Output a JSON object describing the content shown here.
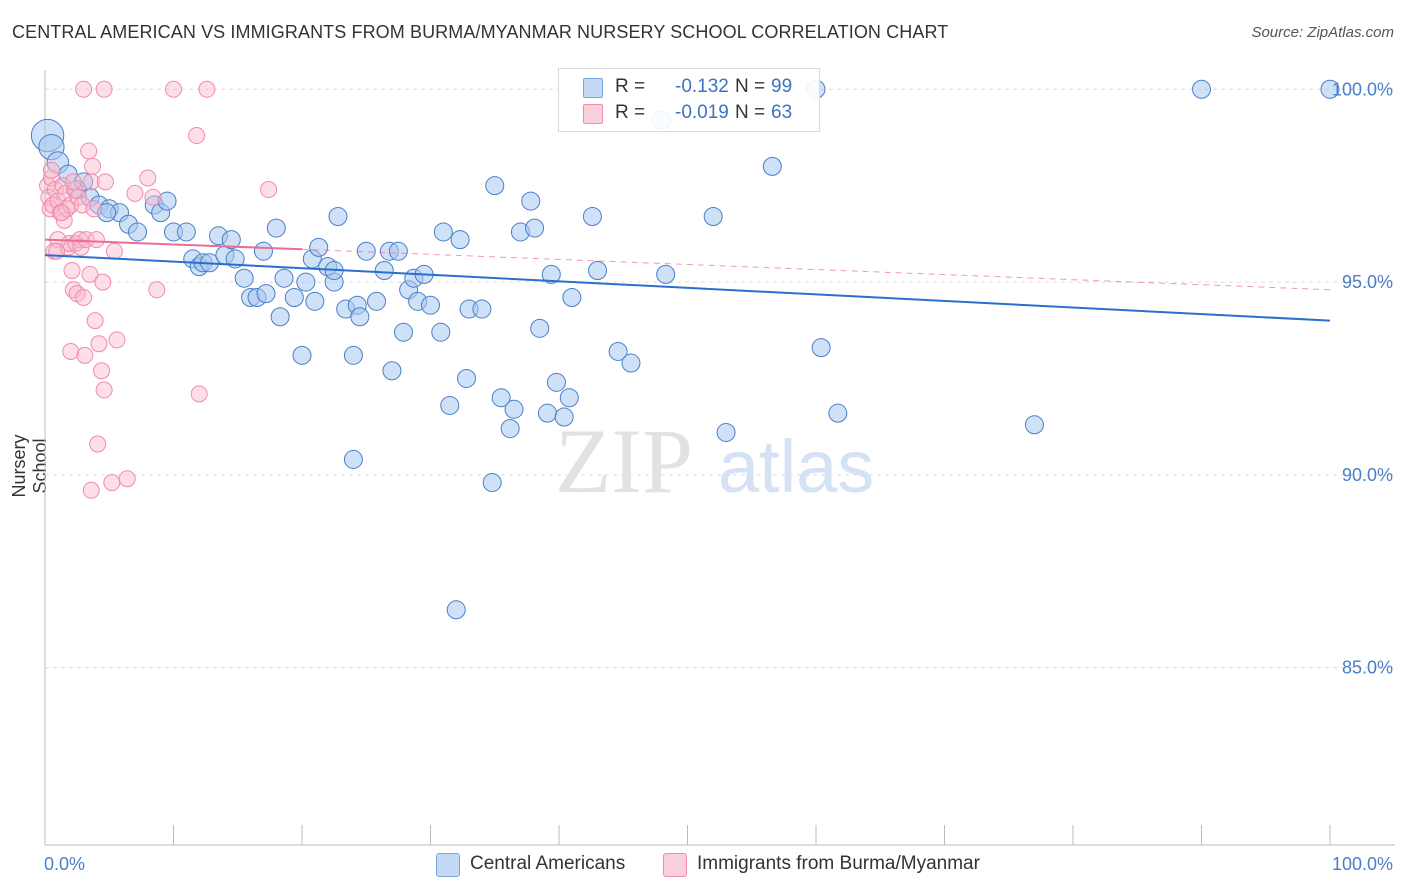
{
  "header": {
    "title": "CENTRAL AMERICAN VS IMMIGRANTS FROM BURMA/MYANMAR NURSERY SCHOOL CORRELATION CHART",
    "source": "Source: ZipAtlas.com"
  },
  "watermark": {
    "zip": "ZIP",
    "atlas": "atlas"
  },
  "legend": {
    "series": [
      {
        "r_label": "R =",
        "r_value": "-0.132",
        "n_label": "N =",
        "n_value": "99",
        "color": "#a8c8f0",
        "stroke": "#7aa6e0"
      },
      {
        "r_label": "R =",
        "r_value": "-0.019",
        "n_label": "N =",
        "n_value": "63",
        "color": "#f8b8cc",
        "stroke": "#f08cab"
      }
    ]
  },
  "chart_data": {
    "type": "scatter",
    "title": "CENTRAL AMERICAN VS IMMIGRANTS FROM BURMA/MYANMAR NURSERY SCHOOL CORRELATION CHART",
    "xlabel": "",
    "ylabel": "Nursery School",
    "xlim": [
      0,
      100
    ],
    "ylim": [
      80,
      100.5
    ],
    "x_tick_labels": [
      "0.0%",
      "100.0%"
    ],
    "y_ticks": [
      85,
      90,
      95,
      100
    ],
    "y_tick_labels": [
      "85.0%",
      "90.0%",
      "95.0%",
      "100.0%"
    ],
    "grid": "horizontal dashed",
    "legend_position": "bottom",
    "series": [
      {
        "name": "Central Americans",
        "color": "#a8c8f0",
        "stroke": "#4a7fc8",
        "trend": {
          "x": [
            0,
            100
          ],
          "y": [
            95.7,
            94.0
          ],
          "color": "#2a6fcc"
        },
        "points": [
          [
            0.2,
            98.8,
            1.8
          ],
          [
            0.5,
            98.5,
            1.4
          ],
          [
            1.0,
            98.1,
            1.2
          ],
          [
            1.8,
            97.8,
            1.0
          ],
          [
            2.5,
            97.4,
            1.0
          ],
          [
            3.5,
            97.2,
            1.0
          ],
          [
            4.2,
            97.0,
            1.0
          ],
          [
            5.0,
            96.9,
            1.0
          ],
          [
            5.8,
            96.8,
            1.0
          ],
          [
            6.5,
            96.5,
            1.0
          ],
          [
            7.2,
            96.3,
            1.0
          ],
          [
            8.5,
            97.0,
            1.0
          ],
          [
            9.0,
            96.8,
            1.0
          ],
          [
            9.5,
            97.1,
            1.0
          ],
          [
            10.0,
            96.3,
            1.0
          ],
          [
            11.0,
            96.3,
            1.0
          ],
          [
            11.5,
            95.6,
            1.0
          ],
          [
            12.0,
            95.4,
            1.0
          ],
          [
            12.3,
            95.5,
            1.0
          ],
          [
            12.8,
            95.5,
            1.0
          ],
          [
            13.5,
            96.2,
            1.0
          ],
          [
            14.0,
            95.7,
            1.0
          ],
          [
            14.5,
            96.1,
            1.0
          ],
          [
            14.8,
            95.6,
            1.0
          ],
          [
            15.5,
            95.1,
            1.0
          ],
          [
            16.0,
            94.6,
            1.0
          ],
          [
            16.5,
            94.6,
            1.0
          ],
          [
            17.0,
            95.8,
            1.0
          ],
          [
            18.0,
            96.4,
            1.0
          ],
          [
            18.3,
            94.1,
            1.0
          ],
          [
            18.6,
            95.1,
            1.0
          ],
          [
            19.4,
            94.6,
            1.0
          ],
          [
            20.0,
            93.1,
            1.0
          ],
          [
            20.3,
            95.0,
            1.0
          ],
          [
            20.8,
            95.6,
            1.0
          ],
          [
            21.0,
            94.5,
            1.0
          ],
          [
            21.3,
            95.9,
            1.0
          ],
          [
            22.0,
            95.4,
            1.0
          ],
          [
            22.5,
            95.0,
            1.0
          ],
          [
            22.8,
            96.7,
            1.0
          ],
          [
            23.4,
            94.3,
            1.0
          ],
          [
            24.0,
            93.1,
            1.0
          ],
          [
            24.3,
            94.4,
            1.0
          ],
          [
            24.5,
            94.1,
            1.0
          ],
          [
            25.0,
            95.8,
            1.0
          ],
          [
            25.8,
            94.5,
            1.0
          ],
          [
            26.4,
            95.3,
            1.0
          ],
          [
            26.8,
            95.8,
            1.0
          ],
          [
            27.0,
            92.7,
            1.0
          ],
          [
            27.5,
            95.8,
            1.0
          ],
          [
            27.9,
            93.7,
            1.0
          ],
          [
            28.3,
            94.8,
            1.0
          ],
          [
            28.7,
            95.1,
            1.0
          ],
          [
            29.0,
            94.5,
            1.0
          ],
          [
            29.5,
            95.2,
            1.0
          ],
          [
            30.0,
            94.4,
            1.0
          ],
          [
            30.8,
            93.7,
            1.0
          ],
          [
            31.0,
            96.3,
            1.0
          ],
          [
            31.5,
            91.8,
            1.0
          ],
          [
            32.3,
            96.1,
            1.0
          ],
          [
            32.8,
            92.5,
            1.0
          ],
          [
            33.0,
            94.3,
            1.0
          ],
          [
            34.0,
            94.3,
            1.0
          ],
          [
            34.8,
            89.8,
            1.0
          ],
          [
            35.0,
            97.5,
            1.0
          ],
          [
            35.5,
            92.0,
            1.0
          ],
          [
            36.2,
            91.2,
            1.0
          ],
          [
            36.5,
            91.7,
            1.0
          ],
          [
            37.0,
            96.3,
            1.0
          ],
          [
            37.8,
            97.1,
            1.0
          ],
          [
            38.1,
            96.4,
            1.0
          ],
          [
            38.5,
            93.8,
            1.0
          ],
          [
            39.1,
            91.6,
            1.0
          ],
          [
            39.4,
            95.2,
            1.0
          ],
          [
            39.8,
            92.4,
            1.0
          ],
          [
            40.4,
            91.5,
            1.0
          ],
          [
            40.8,
            92.0,
            1.0
          ],
          [
            41.0,
            94.6,
            1.0
          ],
          [
            42.6,
            96.7,
            1.0
          ],
          [
            43.0,
            95.3,
            1.0
          ],
          [
            44.6,
            93.2,
            1.0
          ],
          [
            45.6,
            92.9,
            1.0
          ],
          [
            48.0,
            99.2,
            1.0
          ],
          [
            48.3,
            95.2,
            1.0
          ],
          [
            52.0,
            96.7,
            1.0
          ],
          [
            53.0,
            91.1,
            1.0
          ],
          [
            56.6,
            98.0,
            1.0
          ],
          [
            60.0,
            100.0,
            1.0
          ],
          [
            60.4,
            93.3,
            1.0
          ],
          [
            61.7,
            91.6,
            1.0
          ],
          [
            77.0,
            91.3,
            1.0
          ],
          [
            90.0,
            100.0,
            1.0
          ],
          [
            100.0,
            100.0,
            1.0
          ],
          [
            24.0,
            90.4,
            1.0
          ],
          [
            32.0,
            86.5,
            1.0
          ],
          [
            22.5,
            95.3,
            1.0
          ],
          [
            3.0,
            97.6,
            1.0
          ],
          [
            4.8,
            96.8,
            1.0
          ],
          [
            17.2,
            94.7,
            1.0
          ]
        ]
      },
      {
        "name": "Immigrants from Burma/Myanmar",
        "color": "#f8b8cc",
        "stroke": "#f08cab",
        "trend": {
          "x": [
            0,
            20
          ],
          "y": [
            96.1,
            95.85
          ],
          "dashed_extension": {
            "x": [
              20,
              100
            ],
            "y": [
              95.85,
              94.8
            ]
          },
          "color": "#ec6c94"
        },
        "points": [
          [
            0.2,
            97.5
          ],
          [
            0.3,
            97.2
          ],
          [
            0.4,
            96.9
          ],
          [
            0.5,
            97.7
          ],
          [
            0.6,
            97.0
          ],
          [
            0.8,
            97.4
          ],
          [
            1.0,
            97.1
          ],
          [
            1.2,
            96.8
          ],
          [
            1.4,
            97.5
          ],
          [
            1.5,
            96.6
          ],
          [
            1.6,
            97.3
          ],
          [
            1.7,
            96.9
          ],
          [
            1.8,
            95.9
          ],
          [
            1.9,
            96.0
          ],
          [
            2.0,
            97.0
          ],
          [
            2.1,
            95.3
          ],
          [
            2.2,
            94.8
          ],
          [
            2.3,
            97.4
          ],
          [
            2.4,
            96.0
          ],
          [
            2.5,
            94.7
          ],
          [
            2.6,
            97.2
          ],
          [
            2.7,
            96.1
          ],
          [
            2.8,
            95.9
          ],
          [
            2.9,
            97.0
          ],
          [
            3.0,
            94.6
          ],
          [
            3.1,
            93.1
          ],
          [
            3.2,
            96.1
          ],
          [
            3.4,
            98.4
          ],
          [
            3.5,
            95.2
          ],
          [
            3.6,
            97.6
          ],
          [
            3.7,
            98.0
          ],
          [
            3.8,
            96.9
          ],
          [
            3.9,
            94.0
          ],
          [
            4.0,
            96.1
          ],
          [
            4.1,
            90.8
          ],
          [
            4.2,
            93.4
          ],
          [
            4.4,
            92.7
          ],
          [
            4.5,
            95.0
          ],
          [
            4.6,
            92.2
          ],
          [
            4.7,
            97.6
          ],
          [
            5.2,
            89.8
          ],
          [
            5.4,
            95.8
          ],
          [
            5.6,
            93.5
          ],
          [
            6.4,
            89.9
          ],
          [
            7.0,
            97.3
          ],
          [
            8.0,
            97.7
          ],
          [
            8.4,
            97.2
          ],
          [
            8.7,
            94.8
          ],
          [
            10.0,
            100.0
          ],
          [
            11.8,
            98.8
          ],
          [
            12.0,
            92.1
          ],
          [
            12.6,
            100.0
          ],
          [
            17.4,
            97.4
          ],
          [
            3.0,
            100.0
          ],
          [
            4.6,
            100.0
          ],
          [
            1.0,
            96.1
          ],
          [
            0.7,
            95.8
          ],
          [
            2.0,
            93.2
          ],
          [
            0.9,
            95.8
          ],
          [
            1.3,
            96.8
          ],
          [
            0.5,
            97.9
          ],
          [
            2.2,
            97.6
          ],
          [
            3.6,
            89.6
          ]
        ]
      }
    ]
  },
  "legend_bottom": [
    {
      "label": "Central Americans",
      "color": "#a8c8f0",
      "stroke": "#7aa6e0"
    },
    {
      "label": "Immigrants from Burma/Myanmar",
      "color": "#f8b8cc",
      "stroke": "#f08cab"
    }
  ]
}
